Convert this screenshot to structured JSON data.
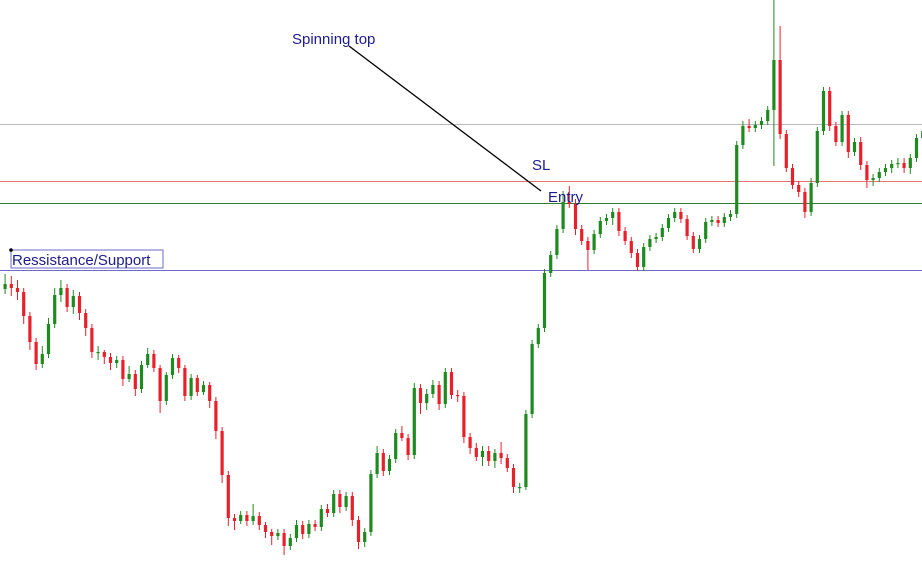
{
  "chart_data": {
    "type": "candlestick",
    "x_axis_visible": false,
    "y_axis_visible": false,
    "grid": false,
    "colors": {
      "bull": "#1f8a1f",
      "bear": "#e8202a",
      "annotation_text": "#1c1c8c",
      "resistance_support_line": "#6b6bc8",
      "entry_line": "#2e7d32",
      "sl_line": "#e57373",
      "upper_line": "#b8b8b8",
      "pointer_line": "#000000"
    },
    "horizontal_levels": [
      {
        "name": "upper",
        "price": 462
      },
      {
        "name": "sl",
        "price": 405
      },
      {
        "name": "entry",
        "price": 383
      },
      {
        "name": "resistance_support",
        "price": 316
      }
    ],
    "candles": [
      [
        297,
        302,
        312,
        292
      ],
      [
        302,
        298,
        310,
        290
      ],
      [
        298,
        294,
        306,
        286
      ],
      [
        294,
        270,
        298,
        262
      ],
      [
        270,
        244,
        274,
        236
      ],
      [
        244,
        222,
        248,
        216
      ],
      [
        222,
        232,
        240,
        218
      ],
      [
        232,
        262,
        268,
        228
      ],
      [
        262,
        291,
        298,
        258
      ],
      [
        291,
        298,
        306,
        284
      ],
      [
        298,
        279,
        302,
        274
      ],
      [
        279,
        290,
        296,
        272
      ],
      [
        290,
        273,
        294,
        266
      ],
      [
        273,
        258,
        277,
        250
      ],
      [
        258,
        234,
        262,
        228
      ],
      [
        234,
        234,
        240,
        226
      ],
      [
        234,
        229,
        236,
        222
      ],
      [
        229,
        223,
        233,
        216
      ],
      [
        223,
        226,
        230,
        218
      ],
      [
        226,
        207,
        230,
        200
      ],
      [
        207,
        212,
        220,
        204
      ],
      [
        212,
        197,
        216,
        190
      ],
      [
        197,
        221,
        225,
        193
      ],
      [
        221,
        232,
        238,
        218
      ],
      [
        232,
        218,
        236,
        214
      ],
      [
        218,
        185,
        221,
        173
      ],
      [
        185,
        211,
        214,
        181
      ],
      [
        211,
        228,
        232,
        207
      ],
      [
        228,
        218,
        231,
        213
      ],
      [
        218,
        190,
        221,
        185
      ],
      [
        190,
        208,
        212,
        186
      ],
      [
        208,
        194,
        211,
        190
      ],
      [
        194,
        201,
        205,
        191
      ],
      [
        201,
        185,
        204,
        178
      ],
      [
        185,
        155,
        189,
        147
      ],
      [
        155,
        111,
        159,
        103
      ],
      [
        111,
        68,
        115,
        60
      ],
      [
        68,
        65,
        72,
        56
      ],
      [
        65,
        71,
        75,
        62
      ],
      [
        71,
        65,
        75,
        60
      ],
      [
        65,
        70,
        82,
        61
      ],
      [
        70,
        61,
        74,
        56
      ],
      [
        61,
        54,
        64,
        48
      ],
      [
        54,
        50,
        57,
        41
      ],
      [
        50,
        53,
        57,
        46
      ],
      [
        53,
        40,
        57,
        31
      ],
      [
        40,
        48,
        52,
        36
      ],
      [
        48,
        61,
        66,
        44
      ],
      [
        61,
        52,
        65,
        47
      ],
      [
        52,
        62,
        66,
        48
      ],
      [
        62,
        59,
        66,
        55
      ],
      [
        59,
        77,
        81,
        55
      ],
      [
        77,
        73,
        82,
        69
      ],
      [
        73,
        92,
        96,
        69
      ],
      [
        92,
        79,
        96,
        73
      ],
      [
        79,
        90,
        94,
        75
      ],
      [
        90,
        66,
        94,
        60
      ],
      [
        66,
        44,
        70,
        37
      ],
      [
        44,
        54,
        58,
        39
      ],
      [
        54,
        112,
        116,
        50
      ],
      [
        112,
        133,
        140,
        108
      ],
      [
        133,
        115,
        137,
        110
      ],
      [
        115,
        127,
        131,
        111
      ],
      [
        127,
        153,
        157,
        123
      ],
      [
        153,
        148,
        160,
        145
      ],
      [
        148,
        131,
        152,
        126
      ],
      [
        131,
        198,
        203,
        127
      ],
      [
        198,
        183,
        202,
        172
      ],
      [
        183,
        192,
        197,
        176
      ],
      [
        192,
        201,
        206,
        188
      ],
      [
        201,
        182,
        205,
        176
      ],
      [
        182,
        214,
        218,
        178
      ],
      [
        214,
        191,
        218,
        187
      ],
      [
        191,
        190,
        196,
        184
      ],
      [
        190,
        149,
        194,
        143
      ],
      [
        149,
        138,
        153,
        132
      ],
      [
        138,
        129,
        143,
        125
      ],
      [
        129,
        135,
        140,
        120
      ],
      [
        135,
        125,
        140,
        120
      ],
      [
        125,
        133,
        137,
        118
      ],
      [
        133,
        128,
        144,
        122
      ],
      [
        128,
        118,
        132,
        114
      ],
      [
        118,
        99,
        122,
        93
      ],
      [
        99,
        99,
        103,
        93
      ],
      [
        99,
        172,
        176,
        96
      ],
      [
        172,
        242,
        246,
        168
      ],
      [
        242,
        258,
        262,
        238
      ],
      [
        258,
        313,
        317,
        254
      ],
      [
        313,
        331,
        335,
        309
      ],
      [
        331,
        357,
        361,
        327
      ],
      [
        357,
        384,
        395,
        353
      ],
      [
        384,
        382,
        400,
        378
      ],
      [
        382,
        357,
        387,
        351
      ],
      [
        357,
        345,
        361,
        341
      ],
      [
        345,
        336,
        349,
        316
      ],
      [
        336,
        352,
        356,
        332
      ],
      [
        352,
        365,
        369,
        348
      ],
      [
        365,
        368,
        372,
        361
      ],
      [
        368,
        374,
        378,
        361
      ],
      [
        374,
        355,
        378,
        350
      ],
      [
        355,
        345,
        359,
        341
      ],
      [
        345,
        333,
        349,
        328
      ],
      [
        333,
        319,
        337,
        315
      ],
      [
        319,
        339,
        343,
        315
      ],
      [
        339,
        347,
        351,
        335
      ],
      [
        347,
        349,
        353,
        343
      ],
      [
        349,
        358,
        362,
        345
      ],
      [
        358,
        368,
        372,
        354
      ],
      [
        368,
        374,
        378,
        364
      ],
      [
        374,
        367,
        378,
        363
      ],
      [
        367,
        350,
        371,
        346
      ],
      [
        350,
        337,
        354,
        333
      ],
      [
        337,
        347,
        351,
        333
      ],
      [
        347,
        364,
        368,
        343
      ],
      [
        364,
        366,
        370,
        360
      ],
      [
        366,
        363,
        370,
        359
      ],
      [
        363,
        369,
        373,
        359
      ],
      [
        369,
        372,
        376,
        365
      ],
      [
        372,
        441,
        445,
        368
      ],
      [
        441,
        460,
        465,
        437
      ],
      [
        460,
        458,
        467,
        454
      ],
      [
        458,
        461,
        465,
        454
      ],
      [
        461,
        465,
        469,
        457
      ],
      [
        465,
        476,
        480,
        461
      ],
      [
        476,
        526,
        586,
        420
      ],
      [
        526,
        452,
        560,
        447
      ],
      [
        452,
        418,
        456,
        414
      ],
      [
        418,
        401,
        422,
        397
      ],
      [
        401,
        394,
        405,
        389
      ],
      [
        394,
        374,
        398,
        368
      ],
      [
        374,
        403,
        408,
        370
      ],
      [
        403,
        455,
        459,
        399
      ],
      [
        455,
        495,
        499,
        451
      ],
      [
        495,
        460,
        499,
        455
      ],
      [
        460,
        444,
        464,
        440
      ],
      [
        444,
        471,
        475,
        440
      ],
      [
        471,
        434,
        475,
        428
      ],
      [
        434,
        444,
        448,
        430
      ],
      [
        444,
        421,
        449,
        416
      ],
      [
        421,
        406,
        425,
        398
      ],
      [
        406,
        408,
        412,
        400
      ],
      [
        408,
        414,
        418,
        404
      ],
      [
        414,
        418,
        422,
        410
      ],
      [
        418,
        422,
        426,
        413
      ],
      [
        422,
        423,
        428,
        418
      ],
      [
        423,
        418,
        428,
        413
      ],
      [
        418,
        428,
        432,
        412
      ],
      [
        428,
        448,
        452,
        424
      ],
      [
        448,
        455,
        459,
        444
      ]
    ],
    "annotations": [
      {
        "text": "Spinning top"
      },
      {
        "text": "SL"
      },
      {
        "text": "Entry"
      },
      {
        "text": "Ressistance/Support"
      }
    ]
  }
}
